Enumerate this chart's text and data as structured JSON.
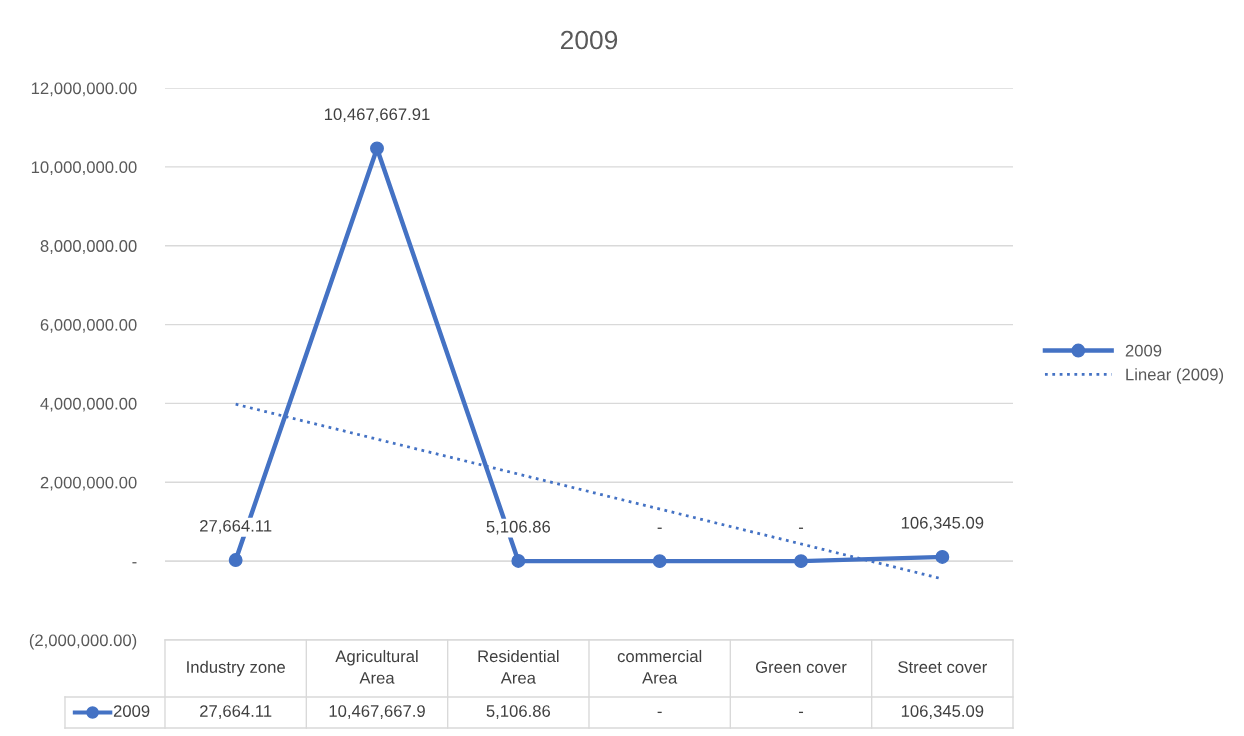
{
  "chart_data": {
    "type": "line",
    "title": "2009",
    "categories": [
      "Industry zone",
      "Agricultural Area",
      "Residential Area",
      "commercial Area",
      "Green cover",
      "Street cover"
    ],
    "series": [
      {
        "name": "2009",
        "color": "#4472c4",
        "values": [
          27664.11,
          10467667.91,
          5106.86,
          0,
          0,
          106345.09
        ],
        "value_labels": [
          "27,664.11",
          "10,467,667.91",
          "5,106.86",
          "-",
          "-",
          "106,345.09"
        ],
        "marker": "circle",
        "line_style": "solid"
      },
      {
        "name": "Linear (2009)",
        "color": "#4472c4",
        "x": [
          "Industry zone",
          "Street cover"
        ],
        "values": [
          3980000,
          -450000
        ],
        "marker": "none",
        "line_style": "dotted"
      }
    ],
    "annotations": [
      "27,664.11",
      "10,467,667.9",
      "5,106.86",
      "-",
      "-",
      "106,345.09"
    ],
    "ylim": [
      -2000000,
      12000000
    ],
    "yticks": [
      {
        "value": -2000000,
        "label": "(2,000,000.00)"
      },
      {
        "value": 0,
        "label": "-"
      },
      {
        "value": 2000000,
        "label": "2,000,000.00"
      },
      {
        "value": 4000000,
        "label": "4,000,000.00"
      },
      {
        "value": 6000000,
        "label": "6,000,000.00"
      },
      {
        "value": 8000000,
        "label": "8,000,000.00"
      },
      {
        "value": 10000000,
        "label": "10,000,000.00"
      },
      {
        "value": 12000000,
        "label": "12,000,000.00"
      }
    ],
    "grid": "y",
    "legend": "right"
  }
}
